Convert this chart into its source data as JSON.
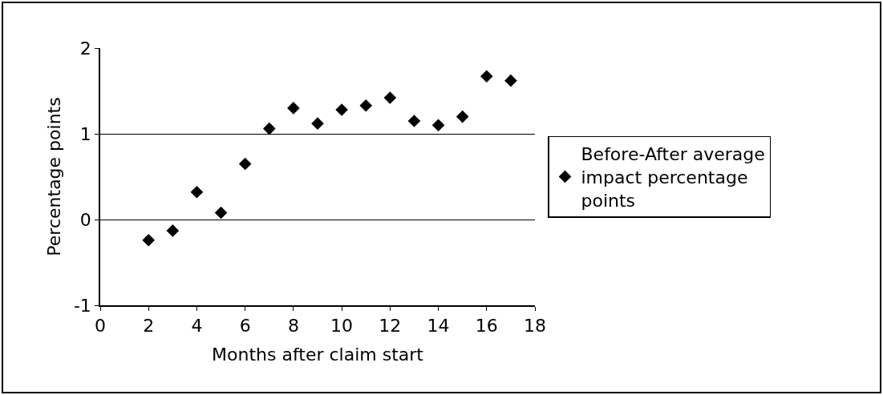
{
  "chart_data": {
    "type": "scatter",
    "xlabel": "Months after claim start",
    "ylabel": "Percentage points",
    "x": [
      2,
      3,
      4,
      5,
      6,
      7,
      8,
      9,
      10,
      11,
      12,
      13,
      14,
      15,
      16,
      17
    ],
    "series": [
      {
        "name": "Before-After average impact percentage points",
        "color": "#000000",
        "values": [
          -0.24,
          -0.13,
          0.32,
          0.08,
          0.65,
          1.06,
          1.3,
          1.12,
          1.28,
          1.33,
          1.42,
          1.15,
          1.1,
          1.2,
          1.67,
          1.62
        ]
      }
    ],
    "xlim": [
      0,
      18
    ],
    "xticks": [
      0,
      2,
      4,
      6,
      8,
      10,
      12,
      14,
      16,
      18
    ],
    "ylim": [
      -1,
      2
    ],
    "yticks": [
      -1,
      0,
      1,
      2
    ],
    "grid": "y",
    "legend": "right",
    "marker": "diamond"
  }
}
